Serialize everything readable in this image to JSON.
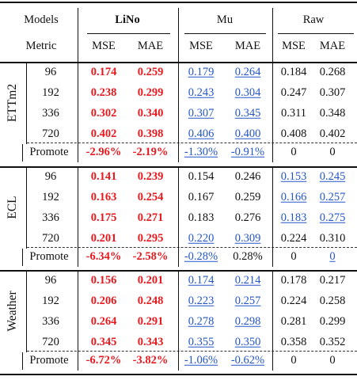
{
  "header": {
    "models_label": "Models",
    "metric_label": "Metric",
    "model_names": [
      "LiNo",
      "Mu",
      "Raw"
    ],
    "metrics": [
      "MSE",
      "MAE",
      "MSE",
      "MAE",
      "MSE",
      "MAE"
    ]
  },
  "styles": {
    "best_color": "#e8191e",
    "second_color": "#2456c8"
  },
  "groups": [
    {
      "dataset": "ETTm2",
      "rows": [
        {
          "horizon": "96",
          "values": [
            "0.174",
            "0.259",
            "0.179",
            "0.264",
            "0.184",
            "0.268"
          ],
          "styles": [
            "b",
            "b",
            "u",
            "u",
            "n",
            "n"
          ]
        },
        {
          "horizon": "192",
          "values": [
            "0.238",
            "0.299",
            "0.243",
            "0.304",
            "0.247",
            "0.307"
          ],
          "styles": [
            "b",
            "b",
            "u",
            "u",
            "n",
            "n"
          ]
        },
        {
          "horizon": "336",
          "values": [
            "0.302",
            "0.340",
            "0.307",
            "0.345",
            "0.311",
            "0.348"
          ],
          "styles": [
            "b",
            "b",
            "u",
            "u",
            "n",
            "n"
          ]
        },
        {
          "horizon": "720",
          "values": [
            "0.402",
            "0.398",
            "0.406",
            "0.400",
            "0.408",
            "0.402"
          ],
          "styles": [
            "b",
            "b",
            "u",
            "u",
            "n",
            "n"
          ]
        }
      ],
      "promote": {
        "label": "Promote",
        "values": [
          "-2.96%",
          "-2.19%",
          "-1.30%",
          "-0.91%",
          "0",
          "0"
        ],
        "styles": [
          "b",
          "b",
          "u",
          "u",
          "n",
          "n"
        ]
      }
    },
    {
      "dataset": "ECL",
      "rows": [
        {
          "horizon": "96",
          "values": [
            "0.141",
            "0.239",
            "0.154",
            "0.246",
            "0.153",
            "0.245"
          ],
          "styles": [
            "b",
            "b",
            "n",
            "n",
            "u",
            "u"
          ]
        },
        {
          "horizon": "192",
          "values": [
            "0.163",
            "0.254",
            "0.167",
            "0.259",
            "0.166",
            "0.257"
          ],
          "styles": [
            "b",
            "b",
            "n",
            "n",
            "u",
            "u"
          ]
        },
        {
          "horizon": "336",
          "values": [
            "0.175",
            "0.271",
            "0.183",
            "0.276",
            "0.183",
            "0.275"
          ],
          "styles": [
            "b",
            "b",
            "n",
            "n",
            "u",
            "u"
          ]
        },
        {
          "horizon": "720",
          "values": [
            "0.201",
            "0.295",
            "0.220",
            "0.309",
            "0.224",
            "0.310"
          ],
          "styles": [
            "b",
            "b",
            "u",
            "u",
            "n",
            "n"
          ]
        }
      ],
      "promote": {
        "label": "Promote",
        "values": [
          "-6.34%",
          "-2.58%",
          "-0.28%",
          "0.28%",
          "0",
          "0"
        ],
        "styles": [
          "b",
          "b",
          "u",
          "n",
          "n",
          "u"
        ]
      }
    },
    {
      "dataset": "Weather",
      "rows": [
        {
          "horizon": "96",
          "values": [
            "0.156",
            "0.201",
            "0.174",
            "0.214",
            "0.178",
            "0.217"
          ],
          "styles": [
            "b",
            "b",
            "u",
            "u",
            "n",
            "n"
          ]
        },
        {
          "horizon": "192",
          "values": [
            "0.206",
            "0.248",
            "0.223",
            "0.257",
            "0.224",
            "0.258"
          ],
          "styles": [
            "b",
            "b",
            "u",
            "u",
            "n",
            "n"
          ]
        },
        {
          "horizon": "336",
          "values": [
            "0.264",
            "0.291",
            "0.278",
            "0.298",
            "0.281",
            "0.299"
          ],
          "styles": [
            "b",
            "b",
            "u",
            "u",
            "n",
            "n"
          ]
        },
        {
          "horizon": "720",
          "values": [
            "0.345",
            "0.343",
            "0.355",
            "0.350",
            "0.358",
            "0.352"
          ],
          "styles": [
            "b",
            "b",
            "u",
            "u",
            "n",
            "n"
          ]
        }
      ],
      "promote": {
        "label": "Promote",
        "values": [
          "-6.72%",
          "-3.82%",
          "-1.06%",
          "-0.62%",
          "0",
          "0"
        ],
        "styles": [
          "b",
          "b",
          "u",
          "u",
          "n",
          "n"
        ]
      }
    }
  ]
}
